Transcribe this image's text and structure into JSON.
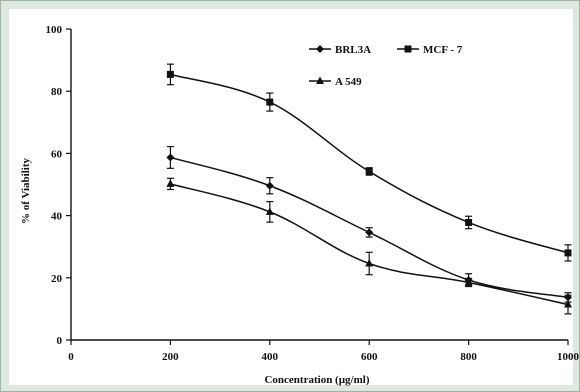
{
  "chart_data": {
    "type": "line",
    "xlabel": "Concentration (µg/ml)",
    "ylabel": "% of Viability",
    "xlim": [
      0,
      1000
    ],
    "ylim": [
      0,
      100
    ],
    "x_ticks": [
      0,
      200,
      400,
      600,
      800,
      1000
    ],
    "y_ticks": [
      0,
      20,
      40,
      60,
      80,
      100
    ],
    "x": [
      200,
      400,
      600,
      800,
      1000
    ],
    "grid": false,
    "legend_position": "top-right",
    "series": [
      {
        "name": "BRL3A",
        "marker": "diamond",
        "values": [
          58.7,
          49.6,
          34.6,
          19.3,
          13.7
        ],
        "errors": [
          3.5,
          2.6,
          1.5,
          2.0,
          1.5
        ]
      },
      {
        "name": "MCF - 7",
        "marker": "square",
        "values": [
          85.4,
          76.5,
          54.2,
          37.8,
          28.0
        ],
        "errors": [
          3.3,
          2.9,
          1.2,
          2.0,
          2.6
        ]
      },
      {
        "name": "A 549",
        "marker": "triangle",
        "values": [
          50.2,
          41.2,
          24.6,
          18.5,
          11.4
        ],
        "errors": [
          1.8,
          3.3,
          3.6,
          1.3,
          3.0
        ]
      }
    ]
  }
}
